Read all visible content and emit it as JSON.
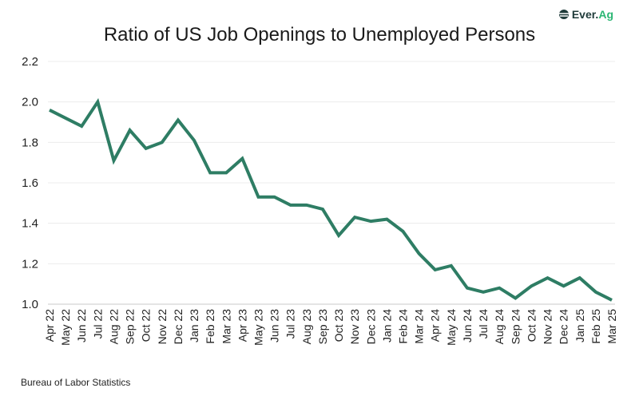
{
  "logo": {
    "text_main": "Ever.",
    "text_accent": "Ag",
    "icon": "globe-icon",
    "accent_color": "#2bb673"
  },
  "source": "Bureau of Labor Statistics",
  "chart_data": {
    "type": "line",
    "title": "Ratio of US Job Openings to Unemployed Persons",
    "xlabel": "",
    "ylabel": "",
    "ylim": [
      1.0,
      2.2
    ],
    "yticks": [
      "1.0",
      "1.2",
      "1.4",
      "1.6",
      "1.8",
      "2.0",
      "2.2"
    ],
    "grid": true,
    "line_color": "#2e7d64",
    "categories": [
      "Apr 22",
      "May 22",
      "Jun 22",
      "Jul 22",
      "Aug 22",
      "Sep 22",
      "Oct 22",
      "Nov 22",
      "Dec 22",
      "Jan 23",
      "Feb 23",
      "Mar 23",
      "Apr 23",
      "May 23",
      "Jun 23",
      "Jul 23",
      "Aug 23",
      "Sep 23",
      "Oct 23",
      "Nov 23",
      "Dec 23",
      "Jan 24",
      "Feb 24",
      "Mar 24",
      "Apr 24",
      "May 24",
      "Jun 24",
      "Jul 24",
      "Aug 24",
      "Sep 24",
      "Oct 24",
      "Nov 24",
      "Dec 24",
      "Jan 25",
      "Feb 25",
      "Mar 25"
    ],
    "values": [
      1.96,
      1.92,
      1.88,
      2.0,
      1.71,
      1.86,
      1.77,
      1.8,
      1.91,
      1.81,
      1.65,
      1.65,
      1.72,
      1.53,
      1.53,
      1.49,
      1.49,
      1.47,
      1.34,
      1.43,
      1.41,
      1.42,
      1.36,
      1.25,
      1.17,
      1.19,
      1.08,
      1.06,
      1.08,
      1.03,
      1.09,
      1.13,
      1.09,
      1.13,
      1.06,
      1.02
    ]
  }
}
